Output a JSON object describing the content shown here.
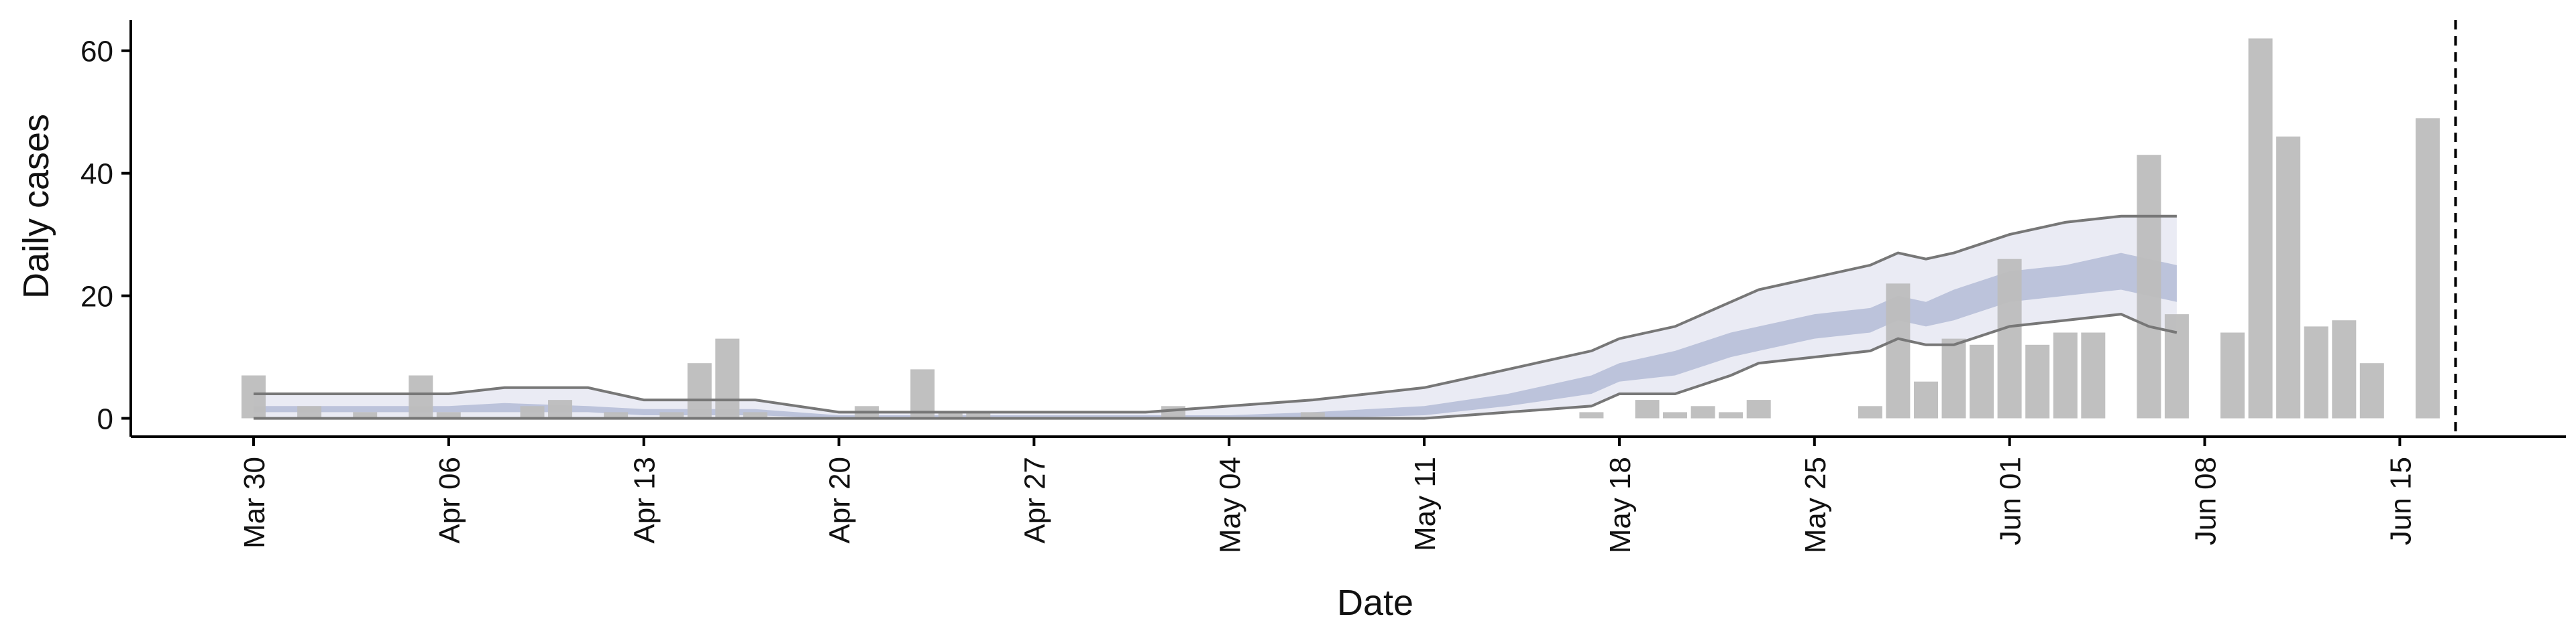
{
  "chart_data": {
    "type": "bar",
    "title": "",
    "xlabel": "Date",
    "ylabel": "Daily cases",
    "ylim": [
      -3,
      65
    ],
    "yticks": [
      0,
      20,
      40,
      60
    ],
    "x_start": "Mar 30",
    "x_tick_labels": [
      "Mar 30",
      "Apr 06",
      "Apr 13",
      "Apr 20",
      "Apr 27",
      "May 04",
      "May 11",
      "May 18",
      "May 25",
      "Jun 01",
      "Jun 08",
      "Jun 15"
    ],
    "grid": false,
    "legend": "none",
    "marker_line": "Jun 17",
    "colors": {
      "bars": "#bdbdbd",
      "band_outer": "#e6e8f2",
      "band_inner": "#b4bcd6",
      "bound_lines": "#777777",
      "axis": "#000000"
    },
    "bars": [
      {
        "date": "Mar 30",
        "value": 7
      },
      {
        "date": "Apr 01",
        "value": 2
      },
      {
        "date": "Apr 03",
        "value": 1
      },
      {
        "date": "Apr 05",
        "value": 7
      },
      {
        "date": "Apr 06",
        "value": 1
      },
      {
        "date": "Apr 09",
        "value": 2
      },
      {
        "date": "Apr 10",
        "value": 3
      },
      {
        "date": "Apr 12",
        "value": 1
      },
      {
        "date": "Apr 14",
        "value": 1
      },
      {
        "date": "Apr 15",
        "value": 9
      },
      {
        "date": "Apr 16",
        "value": 13
      },
      {
        "date": "Apr 17",
        "value": 1
      },
      {
        "date": "Apr 21",
        "value": 2
      },
      {
        "date": "Apr 23",
        "value": 8
      },
      {
        "date": "Apr 24",
        "value": 1
      },
      {
        "date": "Apr 25",
        "value": 1
      },
      {
        "date": "May 02",
        "value": 2
      },
      {
        "date": "May 07",
        "value": 1
      },
      {
        "date": "May 17",
        "value": 1
      },
      {
        "date": "May 19",
        "value": 3
      },
      {
        "date": "May 20",
        "value": 1
      },
      {
        "date": "May 21",
        "value": 2
      },
      {
        "date": "May 22",
        "value": 1
      },
      {
        "date": "May 23",
        "value": 3
      },
      {
        "date": "May 27",
        "value": 2
      },
      {
        "date": "May 28",
        "value": 22
      },
      {
        "date": "May 29",
        "value": 6
      },
      {
        "date": "May 30",
        "value": 13
      },
      {
        "date": "May 31",
        "value": 12
      },
      {
        "date": "Jun 01",
        "value": 26
      },
      {
        "date": "Jun 02",
        "value": 12
      },
      {
        "date": "Jun 03",
        "value": 14
      },
      {
        "date": "Jun 04",
        "value": 14
      },
      {
        "date": "Jun 06",
        "value": 43
      },
      {
        "date": "Jun 07",
        "value": 17
      },
      {
        "date": "Jun 09",
        "value": 14
      },
      {
        "date": "Jun 10",
        "value": 62
      },
      {
        "date": "Jun 11",
        "value": 46
      },
      {
        "date": "Jun 12",
        "value": 15
      },
      {
        "date": "Jun 13",
        "value": 16
      },
      {
        "date": "Jun 14",
        "value": 9
      },
      {
        "date": "Jun 16",
        "value": 49
      }
    ],
    "forecast_band": [
      {
        "date": "Mar 30",
        "outer_lo": 0,
        "inner_lo": 1,
        "inner_hi": 2,
        "outer_hi": 4
      },
      {
        "date": "Apr 05",
        "outer_lo": 0,
        "inner_lo": 1,
        "inner_hi": 2,
        "outer_hi": 4
      },
      {
        "date": "Apr 06",
        "outer_lo": 0,
        "inner_lo": 1,
        "inner_hi": 2,
        "outer_hi": 4
      },
      {
        "date": "Apr 08",
        "outer_lo": 0,
        "inner_lo": 1,
        "inner_hi": 2.5,
        "outer_hi": 5
      },
      {
        "date": "Apr 11",
        "outer_lo": 0,
        "inner_lo": 1,
        "inner_hi": 2,
        "outer_hi": 5
      },
      {
        "date": "Apr 13",
        "outer_lo": 0,
        "inner_lo": 0.5,
        "inner_hi": 1.5,
        "outer_hi": 3
      },
      {
        "date": "Apr 17",
        "outer_lo": 0,
        "inner_lo": 0.5,
        "inner_hi": 1.5,
        "outer_hi": 3
      },
      {
        "date": "Apr 20",
        "outer_lo": 0,
        "inner_lo": 0,
        "inner_hi": 0.5,
        "outer_hi": 1
      },
      {
        "date": "May 01",
        "outer_lo": 0,
        "inner_lo": 0,
        "inner_hi": 0.5,
        "outer_hi": 1
      },
      {
        "date": "May 04",
        "outer_lo": 0,
        "inner_lo": 0,
        "inner_hi": 0.5,
        "outer_hi": 2
      },
      {
        "date": "May 07",
        "outer_lo": 0,
        "inner_lo": 0,
        "inner_hi": 1,
        "outer_hi": 3
      },
      {
        "date": "May 11",
        "outer_lo": 0,
        "inner_lo": 0.5,
        "inner_hi": 2,
        "outer_hi": 5
      },
      {
        "date": "May 14",
        "outer_lo": 1,
        "inner_lo": 2,
        "inner_hi": 4,
        "outer_hi": 8
      },
      {
        "date": "May 17",
        "outer_lo": 2,
        "inner_lo": 4,
        "inner_hi": 7,
        "outer_hi": 11
      },
      {
        "date": "May 18",
        "outer_lo": 4,
        "inner_lo": 6,
        "inner_hi": 9,
        "outer_hi": 13
      },
      {
        "date": "May 20",
        "outer_lo": 4,
        "inner_lo": 7,
        "inner_hi": 11,
        "outer_hi": 15
      },
      {
        "date": "May 22",
        "outer_lo": 7,
        "inner_lo": 10,
        "inner_hi": 14,
        "outer_hi": 19
      },
      {
        "date": "May 23",
        "outer_lo": 9,
        "inner_lo": 11,
        "inner_hi": 15,
        "outer_hi": 21
      },
      {
        "date": "May 25",
        "outer_lo": 10,
        "inner_lo": 13,
        "inner_hi": 17,
        "outer_hi": 23
      },
      {
        "date": "May 27",
        "outer_lo": 11,
        "inner_lo": 14,
        "inner_hi": 18,
        "outer_hi": 25
      },
      {
        "date": "May 28",
        "outer_lo": 13,
        "inner_lo": 16,
        "inner_hi": 20,
        "outer_hi": 27
      },
      {
        "date": "May 29",
        "outer_lo": 12,
        "inner_lo": 15,
        "inner_hi": 19,
        "outer_hi": 26
      },
      {
        "date": "May 30",
        "outer_lo": 12,
        "inner_lo": 16,
        "inner_hi": 21,
        "outer_hi": 27
      },
      {
        "date": "Jun 01",
        "outer_lo": 15,
        "inner_lo": 19,
        "inner_hi": 24,
        "outer_hi": 30
      },
      {
        "date": "Jun 03",
        "outer_lo": 16,
        "inner_lo": 20,
        "inner_hi": 25,
        "outer_hi": 32
      },
      {
        "date": "Jun 05",
        "outer_lo": 17,
        "inner_lo": 21,
        "inner_hi": 27,
        "outer_hi": 33
      },
      {
        "date": "Jun 06",
        "outer_lo": 15,
        "inner_lo": 20,
        "inner_hi": 26,
        "outer_hi": 33
      },
      {
        "date": "Jun 07",
        "outer_lo": 14,
        "inner_lo": 19,
        "inner_hi": 25,
        "outer_hi": 33
      }
    ]
  }
}
